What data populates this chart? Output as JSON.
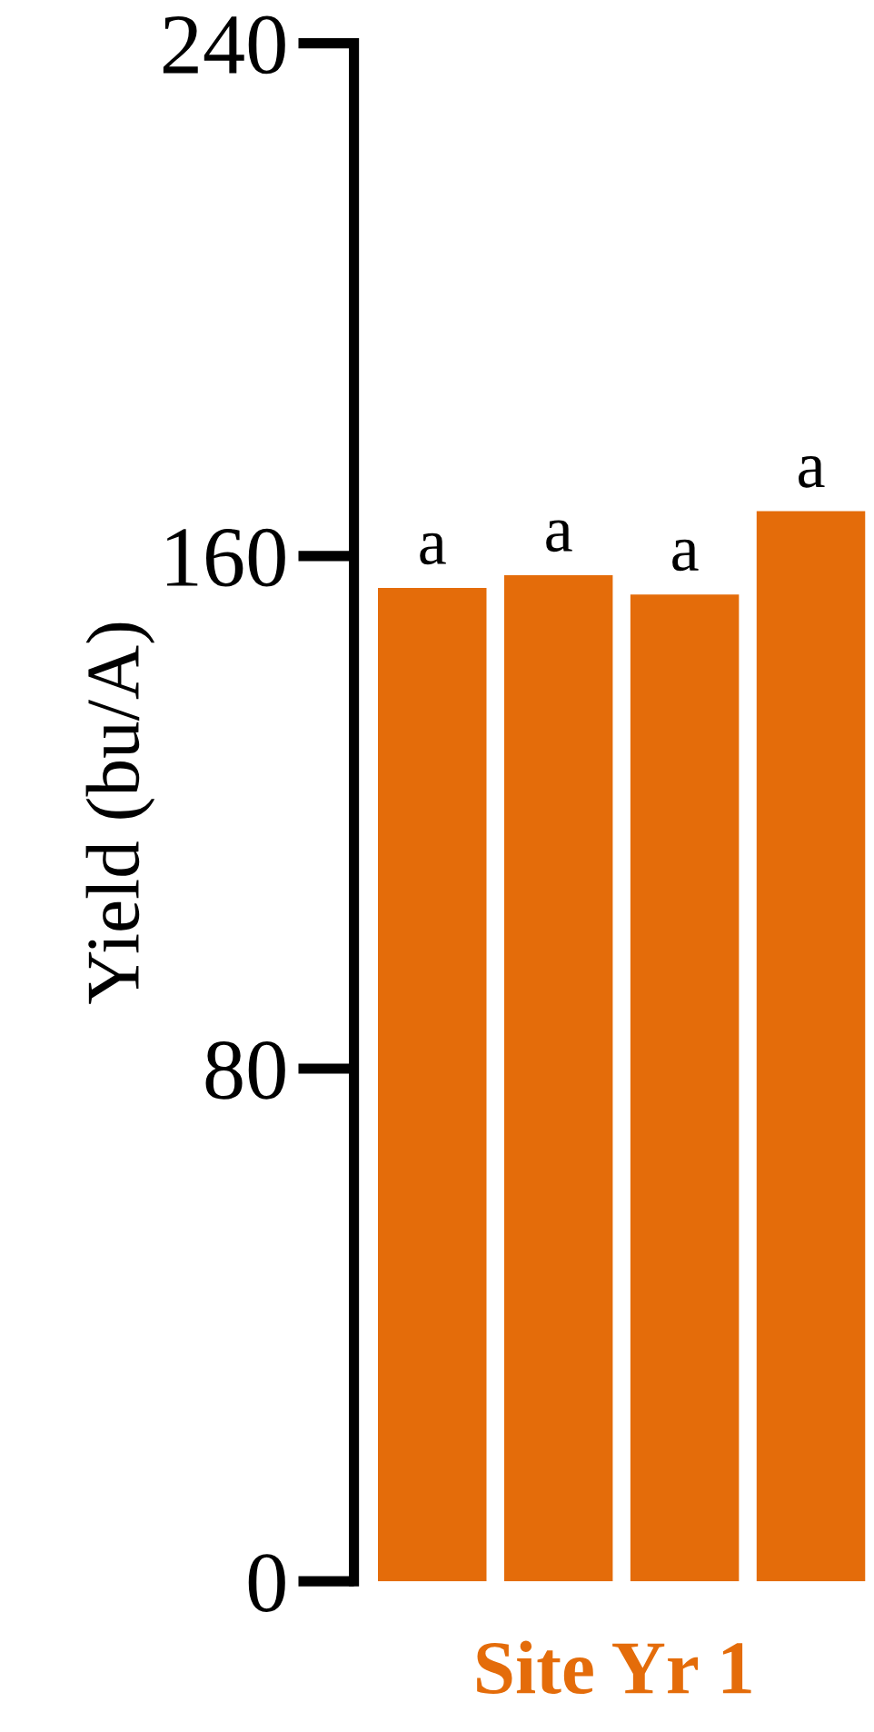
{
  "chart_data": {
    "type": "bar",
    "xlabel": "Site Yr 1",
    "ylabel": "Yield (bu/A)",
    "categories": [
      null,
      null,
      null,
      null
    ],
    "values": [
      155,
      157,
      154,
      167
    ],
    "colors": [
      "#e46c0a",
      "#e46c0a",
      "#e46c0a",
      "#e46c0a"
    ],
    "value_labels": [
      "a",
      "a",
      "a",
      "a"
    ],
    "ylim": [
      0,
      240
    ],
    "yticks": [
      0,
      80,
      160,
      240
    ],
    "grid": false,
    "legend": false
  }
}
